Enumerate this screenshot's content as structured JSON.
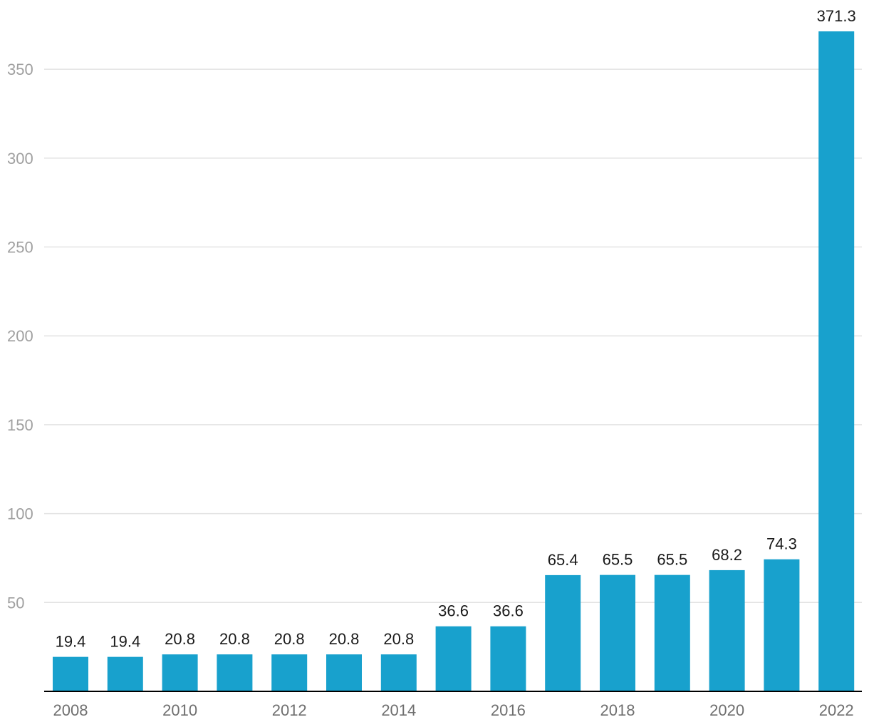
{
  "chart_data": {
    "type": "bar",
    "title": "",
    "xlabel": "",
    "ylabel": "",
    "categories": [
      "2008",
      "2009",
      "2010",
      "2011",
      "2012",
      "2013",
      "2014",
      "2015",
      "2016",
      "2017",
      "2018",
      "2019",
      "2020",
      "2021",
      "2022"
    ],
    "values": [
      19.4,
      19.4,
      20.8,
      20.8,
      20.8,
      20.8,
      20.8,
      36.6,
      36.6,
      65.4,
      65.5,
      65.5,
      68.2,
      74.3,
      371.3
    ],
    "data_labels": [
      "19.4",
      "19.4",
      "20.8",
      "20.8",
      "20.8",
      "20.8",
      "20.8",
      "36.6",
      "36.6",
      "65.4",
      "65.5",
      "65.5",
      "68.2",
      "74.3",
      "371.3"
    ],
    "x_tick_labels": [
      "2008",
      "2010",
      "2012",
      "2014",
      "2016",
      "2018",
      "2020",
      "2022"
    ],
    "y_ticks": [
      50,
      100,
      150,
      200,
      250,
      300,
      350
    ],
    "y_tick_labels": [
      "50",
      "100",
      "150",
      "200",
      "250",
      "300",
      "350"
    ],
    "ylim": [
      0,
      371.3
    ],
    "grid": true,
    "legend": "none",
    "colors": {
      "bar": "#18a1cd",
      "grid": "#e3e3e3",
      "axis": "#000000"
    }
  }
}
